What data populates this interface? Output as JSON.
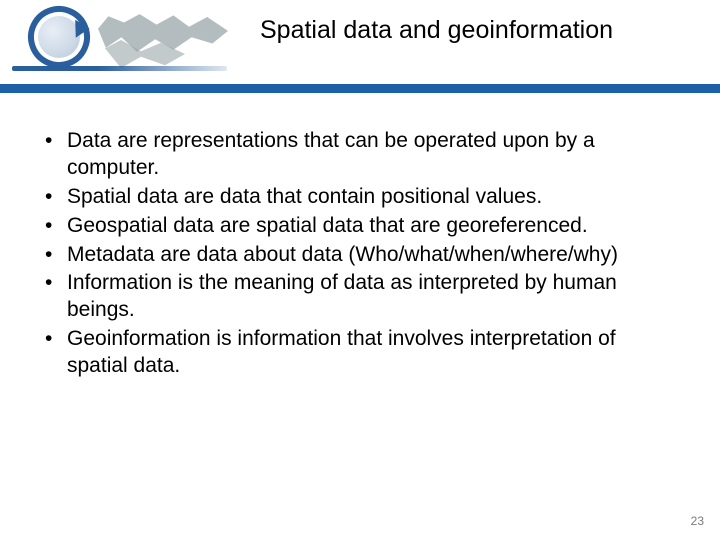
{
  "header": {
    "title": "Spatial data and geoinformation",
    "bar_color": "#1f5fa8",
    "logo_ring_color": "#2a5e9d"
  },
  "content": {
    "bullets": [
      "Data are representations that can be operated upon by a computer.",
      "Spatial data are data that contain positional values.",
      "Geospatial data are spatial data that are georeferenced.",
      "Metadata are data about data (Who/what/when/where/why)",
      "Information is the meaning of data as interpreted by human beings.",
      "Geoinformation is information that involves interpretation of spatial data."
    ]
  },
  "footer": {
    "page_number": "23"
  },
  "style": {
    "title_fontsize": 25,
    "bullet_fontsize": 21,
    "page_num_color": "#7a7a7a",
    "background_color": "#ffffff"
  }
}
